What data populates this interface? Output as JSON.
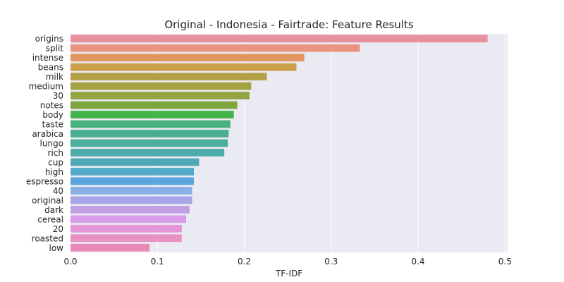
{
  "chart_data": {
    "type": "bar",
    "orientation": "horizontal",
    "title": "Original - Indonesia - Fairtrade: Feature Results",
    "xlabel": "TF-IDF",
    "ylabel": "",
    "xlim": [
      0,
      0.503
    ],
    "xticks": [
      "0.0",
      "0.1",
      "0.2",
      "0.3",
      "0.4",
      "0.5"
    ],
    "grid": "vertical",
    "categories": [
      "origins",
      "split",
      "intense",
      "beans",
      "milk",
      "medium",
      "30",
      "notes",
      "body",
      "taste",
      "arabica",
      "lungo",
      "rich",
      "cup",
      "high",
      "espresso",
      "40",
      "original",
      "dark",
      "cereal",
      "20",
      "roasted",
      "low"
    ],
    "values": [
      0.48,
      0.333,
      0.269,
      0.26,
      0.226,
      0.208,
      0.206,
      0.192,
      0.188,
      0.184,
      0.182,
      0.181,
      0.177,
      0.148,
      0.142,
      0.142,
      0.14,
      0.14,
      0.137,
      0.133,
      0.128,
      0.128,
      0.091
    ],
    "colors": [
      "#e8919c",
      "#e99581",
      "#e0965c",
      "#cba048",
      "#b4a146",
      "#a3a244",
      "#94a442",
      "#7ea63f",
      "#45b44a",
      "#49b17e",
      "#4bae91",
      "#4bad9c",
      "#4dacab",
      "#4ea9b5",
      "#52aac9",
      "#59a7dc",
      "#8aaee6",
      "#a7a5e7",
      "#c19fe3",
      "#d99ce8",
      "#e595d7",
      "#e891c5",
      "#e98ab8"
    ]
  }
}
